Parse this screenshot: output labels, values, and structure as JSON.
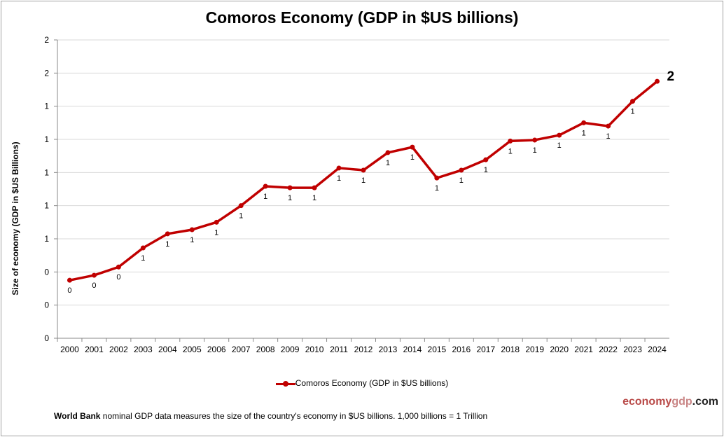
{
  "chart_data": {
    "type": "line",
    "title": "Comoros Economy (GDP in $US billions)",
    "xlabel": "",
    "ylabel": "Size of economy (GDP in $US Billions)",
    "categories": [
      "2000",
      "2001",
      "2002",
      "2003",
      "2004",
      "2005",
      "2006",
      "2007",
      "2008",
      "2009",
      "2010",
      "2011",
      "2012",
      "2013",
      "2014",
      "2015",
      "2016",
      "2017",
      "2018",
      "2019",
      "2020",
      "2021",
      "2022",
      "2023",
      "2024"
    ],
    "series": [
      {
        "name": "Comoros Economy (GDP in $US billions)",
        "color": "#c00000",
        "values": [
          0.35,
          0.38,
          0.43,
          0.545,
          0.63,
          0.655,
          0.7,
          0.8,
          0.917,
          0.908,
          0.908,
          1.027,
          1.014,
          1.12,
          1.153,
          0.967,
          1.014,
          1.077,
          1.19,
          1.196,
          1.225,
          1.3,
          1.28,
          1.43,
          1.55
        ],
        "data_labels": [
          "0",
          "0",
          "0",
          "1",
          "1",
          "1",
          "1",
          "1",
          "1",
          "1",
          "1",
          "1",
          "1",
          "1",
          "1",
          "1",
          "1",
          "1",
          "1",
          "1",
          "1",
          "1",
          "1",
          "1",
          "2"
        ]
      }
    ],
    "ylim": [
      0,
      1.8
    ],
    "yticks": [
      0,
      0.2,
      0.4,
      0.6,
      0.8,
      1.0,
      1.2,
      1.4,
      1.6,
      1.8
    ],
    "ytick_labels": [
      "0",
      "0",
      "0",
      "1",
      "1",
      "1",
      "1",
      "1",
      "2",
      "2"
    ],
    "grid": true,
    "legend": "bottom"
  },
  "footer": {
    "brand_part1": "economy",
    "brand_part2": "gdp",
    "brand_part3": ".com",
    "note_bold": "World Bank",
    "note_text": " nominal GDP data  measures the size of the country's economy in $US billions. 1,000 billions = 1 Trillion"
  }
}
